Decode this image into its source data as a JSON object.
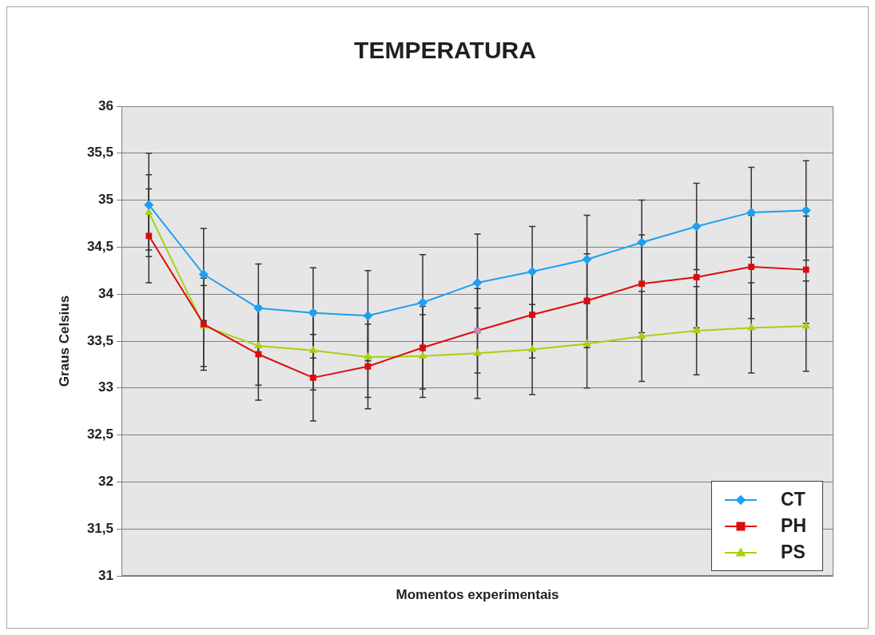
{
  "chart_data": {
    "type": "line",
    "title": "TEMPERATURA",
    "xlabel": "Momentos experimentais",
    "ylabel": "Graus Celsius",
    "categories": [
      null,
      null,
      null,
      null,
      null,
      null,
      null,
      null,
      null,
      null,
      null,
      null,
      null
    ],
    "ylim": [
      31,
      36
    ],
    "yticks": [
      31,
      {
        "value": 31.5,
        "label": "31,5"
      },
      32,
      {
        "value": 32.5,
        "label": "32,5"
      },
      33,
      {
        "value": 33.5,
        "label": "33,5"
      },
      34,
      {
        "value": 34.5,
        "label": "34,5"
      },
      35,
      {
        "value": 35.5,
        "label": "35,5"
      },
      36
    ],
    "grid": "y",
    "legend": "bottom right",
    "series": [
      {
        "name": "CT",
        "color": "#1e9ff2",
        "marker": "diamond",
        "values": [
          34.95,
          34.21,
          33.85,
          33.8,
          33.77,
          33.91,
          34.12,
          34.24,
          34.37,
          34.55,
          34.72,
          34.87,
          34.89
        ],
        "errors": [
          0.55,
          0.49,
          0.47,
          0.48,
          0.48,
          0.51,
          0.52,
          0.48,
          0.47,
          0.45,
          0.46,
          0.48,
          0.53
        ]
      },
      {
        "name": "PH",
        "color": "#dd0b0b",
        "colors": [
          "#dd0b0b",
          "#dd0b0b",
          "#dd0b0b",
          "#dd0b0b",
          "#dd0b0b",
          "#dd0b0b",
          "#cc80b3",
          "#dd0b0b",
          "#dd0b0b",
          "#dd0b0b",
          "#dd0b0b",
          "#dd0b0b",
          "#dd0b0b"
        ],
        "marker": "square",
        "values": [
          34.62,
          33.68,
          33.36,
          33.11,
          33.23,
          33.43,
          33.61,
          33.78,
          33.93,
          34.11,
          34.18,
          34.29,
          34.26
        ],
        "errors": [
          0.5,
          0.49,
          0.49,
          0.46,
          0.45,
          0.44,
          0.45,
          0.46,
          0.5,
          0.52,
          0.54,
          0.55,
          0.57
        ]
      },
      {
        "name": "PS",
        "color": "#a6d10f",
        "marker": "triangle",
        "values": [
          34.87,
          33.66,
          33.45,
          33.4,
          33.33,
          33.34,
          33.37,
          33.41,
          33.47,
          33.55,
          33.61,
          33.64,
          33.66
        ],
        "errors": [
          0.4,
          0.43,
          0.42,
          0.42,
          0.43,
          0.44,
          0.48,
          0.48,
          0.47,
          0.48,
          0.47,
          0.48,
          0.48
        ]
      }
    ]
  }
}
